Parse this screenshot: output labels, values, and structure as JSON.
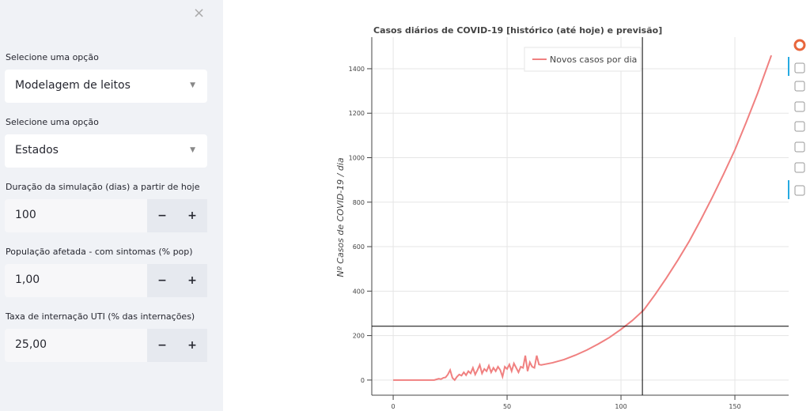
{
  "sidebar": {
    "close": "×",
    "stepper": {
      "minus": "−",
      "plus": "+"
    },
    "fields": [
      {
        "label": "Selecione uma opção",
        "value": "Modelagem de leitos"
      },
      {
        "label": "Selecione uma opção",
        "value": "Estados"
      },
      {
        "label": "Duração da simulação (dias) a partir de hoje",
        "value": "100"
      },
      {
        "label": "População afetada - com sintomas (% pop)",
        "value": "1,00"
      },
      {
        "label": "Taxa de internação UTI (% das internações)",
        "value": "25,00"
      }
    ]
  },
  "chart_data": {
    "type": "line",
    "title": "Casos diários de COVID-19 [histórico (até hoje) e previsão]",
    "y_label": "Nº Casos de COVID-19 / dia",
    "x": [
      0,
      1,
      2,
      3,
      4,
      5,
      6,
      7,
      8,
      9,
      10,
      11,
      12,
      13,
      14,
      15,
      16,
      17,
      18,
      19,
      20,
      21,
      22,
      23,
      24,
      25,
      26,
      27,
      28,
      29,
      30,
      31,
      32,
      33,
      34,
      35,
      36,
      37,
      38,
      39,
      40,
      41,
      42,
      43,
      44,
      45,
      46,
      47,
      48,
      49,
      50,
      51,
      52,
      53,
      54,
      55,
      56,
      57,
      58,
      59,
      60,
      61,
      62,
      63,
      64,
      65,
      66,
      70,
      75,
      80,
      85,
      90,
      95,
      100,
      105,
      110,
      115,
      120,
      125,
      130,
      135,
      140,
      145,
      150,
      155,
      160,
      166
    ],
    "series": [
      {
        "name": "Novos casos por dia",
        "color": "#f08080",
        "values": [
          0,
          0,
          0,
          0,
          0,
          0,
          0,
          0,
          0,
          0,
          0,
          0,
          0,
          0,
          0,
          0,
          0,
          0,
          0,
          3,
          6,
          4,
          10,
          12,
          25,
          45,
          10,
          0,
          15,
          25,
          20,
          35,
          22,
          40,
          30,
          55,
          25,
          45,
          68,
          30,
          50,
          40,
          65,
          35,
          55,
          40,
          60,
          45,
          15,
          60,
          50,
          70,
          40,
          75,
          55,
          35,
          60,
          55,
          110,
          40,
          80,
          60,
          55,
          110,
          70,
          68,
          70,
          78,
          92,
          112,
          135,
          162,
          192,
          228,
          268,
          315,
          385,
          460,
          540,
          625,
          720,
          820,
          925,
          1035,
          1160,
          1290,
          1460
        ]
      }
    ],
    "xlim": [
      -9.4,
      173.6
    ],
    "ylim": [
      -68,
      1542
    ],
    "xticks": [
      0,
      50,
      100,
      150
    ],
    "yticks": [
      0,
      200,
      400,
      600,
      800,
      1000,
      1200,
      1400
    ],
    "grid": true,
    "crosshair": {
      "x": 109.4,
      "y": 242
    }
  }
}
